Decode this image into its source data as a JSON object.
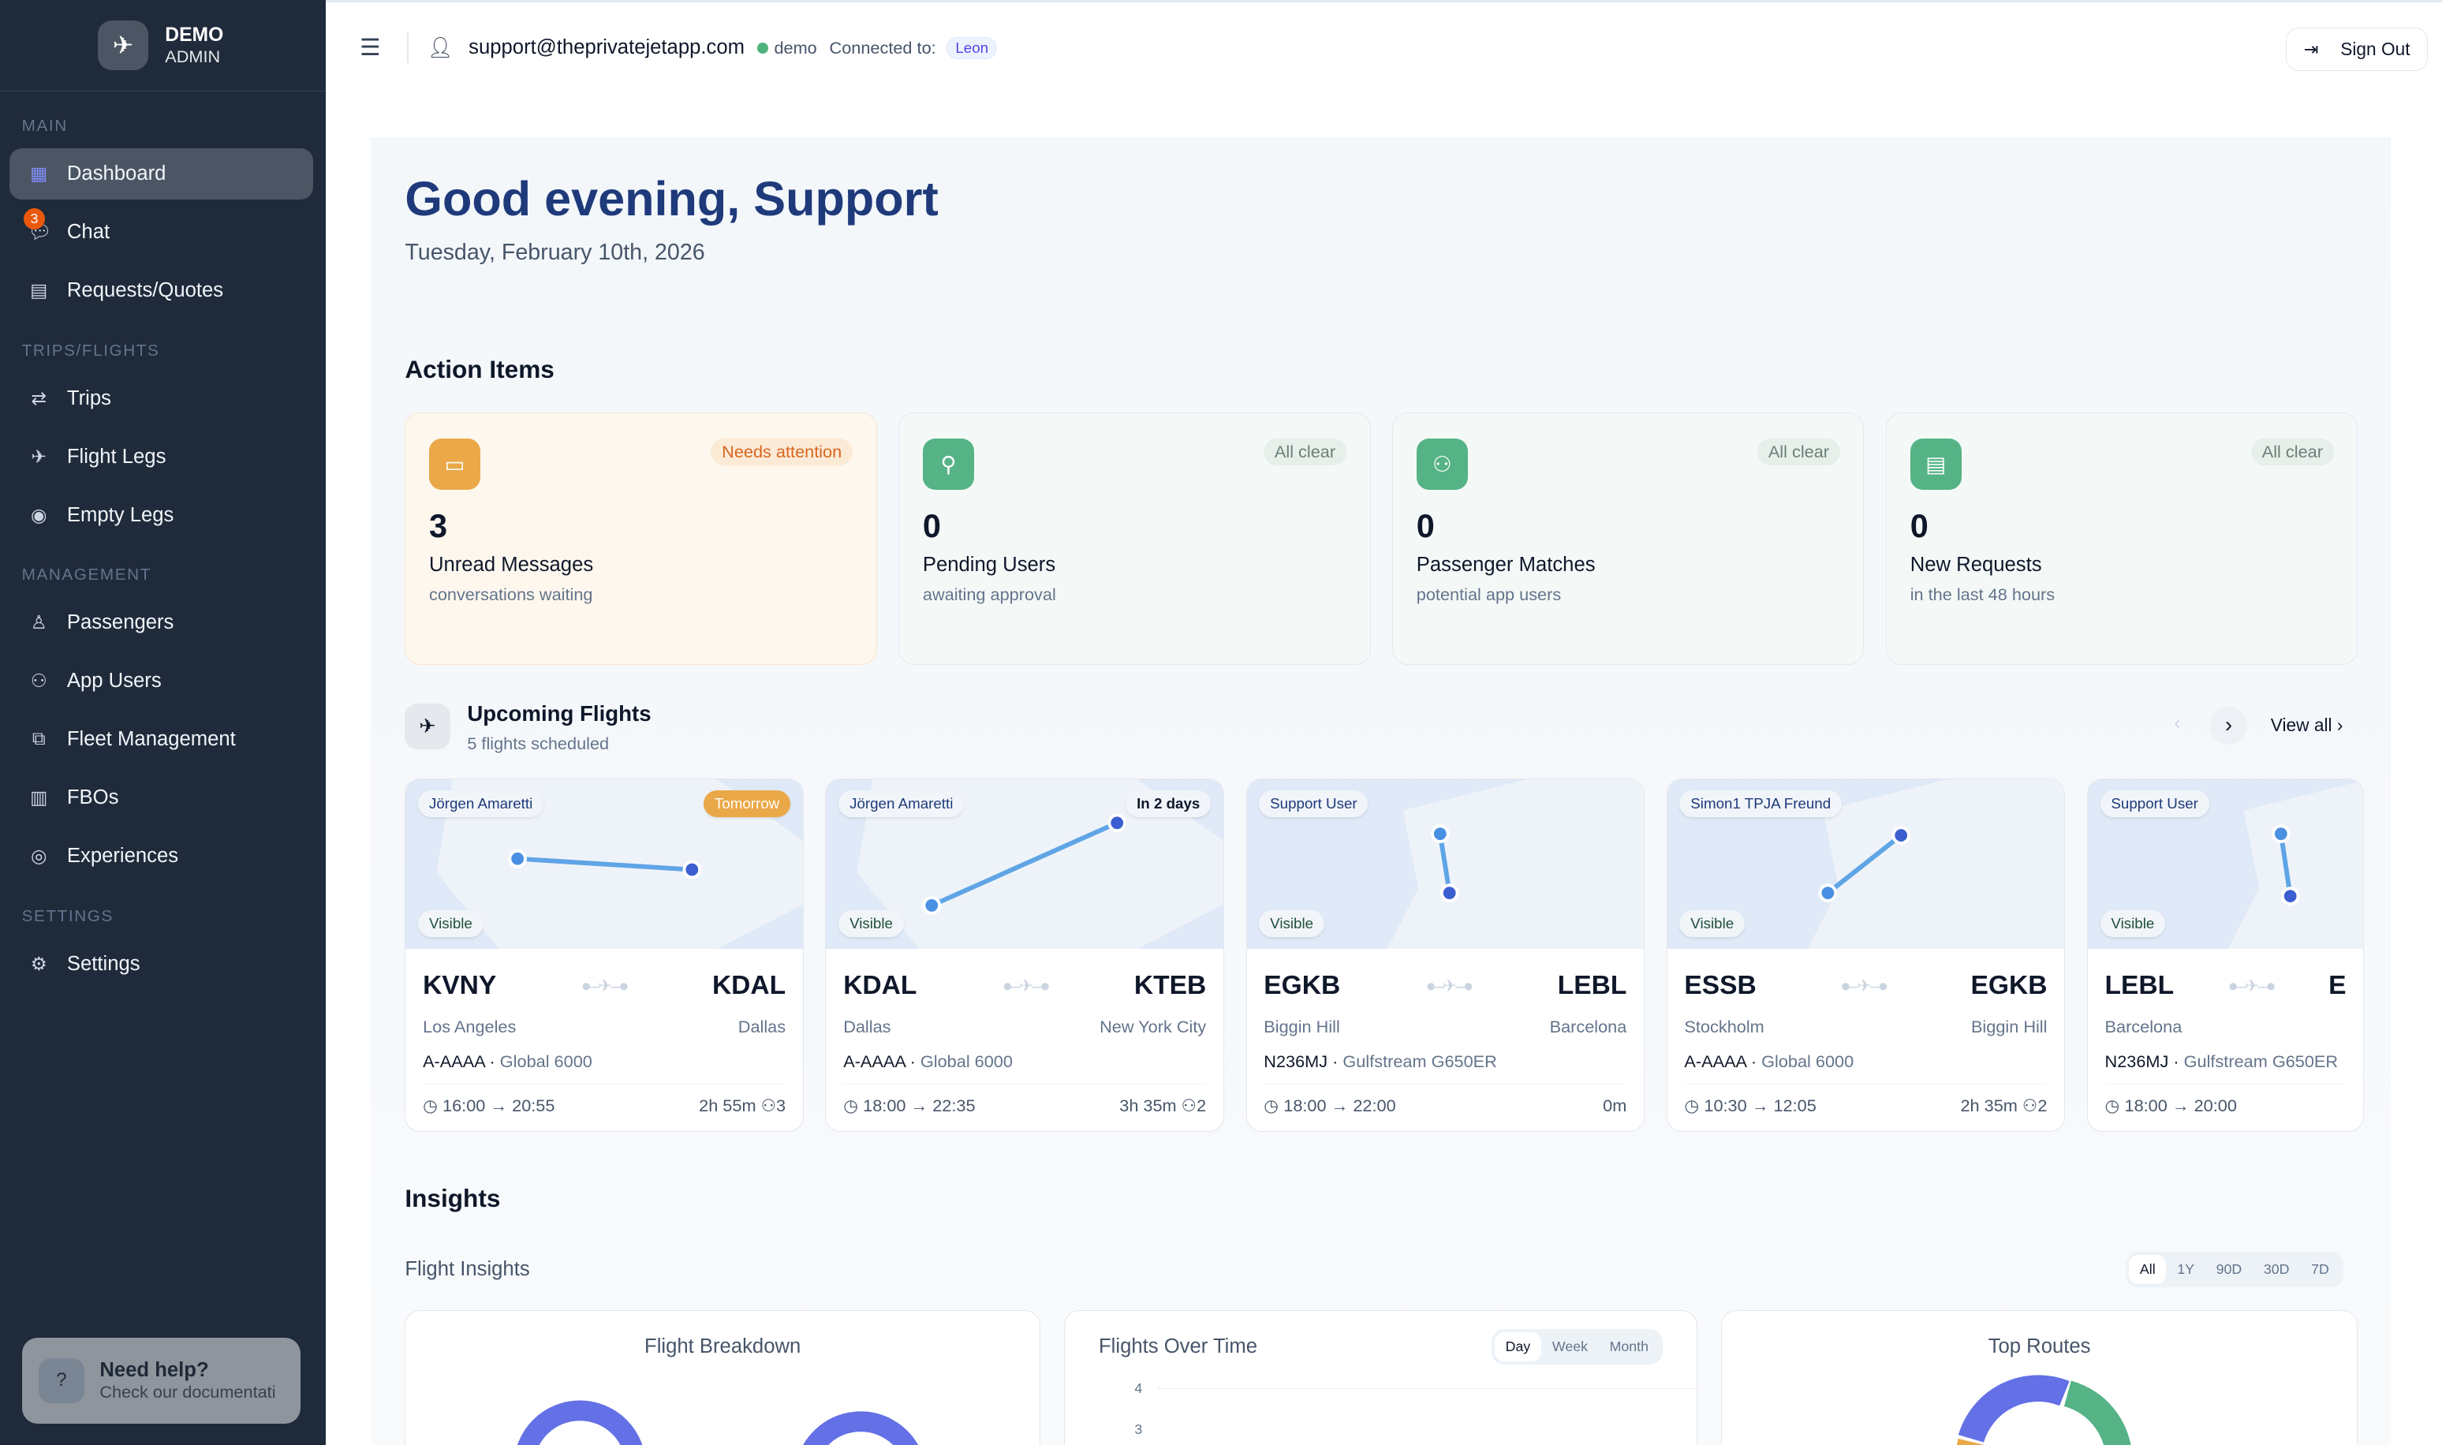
{
  "brand": {
    "title": "DEMO",
    "subtitle": "ADMIN"
  },
  "sidebar": {
    "sections": [
      {
        "label": "MAIN",
        "items": [
          {
            "label": "Dashboard",
            "icon": "grid-icon",
            "active": true
          },
          {
            "label": "Chat",
            "icon": "chat-icon",
            "badge": "3"
          },
          {
            "label": "Requests/Quotes",
            "icon": "document-icon"
          }
        ]
      },
      {
        "label": "TRIPS/FLIGHTS",
        "items": [
          {
            "label": "Trips",
            "icon": "route-icon"
          },
          {
            "label": "Flight Legs",
            "icon": "plane-icon"
          },
          {
            "label": "Empty Legs",
            "icon": "pin-icon"
          }
        ]
      },
      {
        "label": "MANAGEMENT",
        "items": [
          {
            "label": "Passengers",
            "icon": "user-icon"
          },
          {
            "label": "App Users",
            "icon": "users-icon"
          },
          {
            "label": "Fleet Management",
            "icon": "fleet-icon"
          },
          {
            "label": "FBOs",
            "icon": "building-icon"
          },
          {
            "label": "Experiences",
            "icon": "compass-icon"
          }
        ]
      },
      {
        "label": "SETTINGS",
        "items": [
          {
            "label": "Settings",
            "icon": "gear-icon"
          }
        ]
      }
    ],
    "help": {
      "title": "Need help?",
      "subtitle": "Check our documentati"
    }
  },
  "topbar": {
    "email": "support@theprivatejetapp.com",
    "env": "demo",
    "connected_label": "Connected to:",
    "connected_value": "Leon",
    "signout": "Sign Out"
  },
  "greeting": "Good evening, Support",
  "date": "Tuesday, February 10th, 2026",
  "action_items": {
    "title": "Action Items",
    "cards": [
      {
        "count": "3",
        "title": "Unread Messages",
        "sub": "conversations waiting",
        "status": "Needs attention",
        "icon": "message-icon"
      },
      {
        "count": "0",
        "title": "Pending Users",
        "sub": "awaiting approval",
        "status": "All clear",
        "icon": "user-plus-icon"
      },
      {
        "count": "0",
        "title": "Passenger Matches",
        "sub": "potential app users",
        "status": "All clear",
        "icon": "users-icon"
      },
      {
        "count": "0",
        "title": "New Requests",
        "sub": "in the last 48 hours",
        "status": "All clear",
        "icon": "file-icon"
      }
    ]
  },
  "upcoming": {
    "title": "Upcoming Flights",
    "subtitle": "5 flights scheduled",
    "view_all": "View all",
    "flights": [
      {
        "owner": "Jörgen Amaretti",
        "when": "Tomorrow",
        "visibility": "Visible",
        "from": "KVNY",
        "to": "KDAL",
        "from_city": "Los Angeles",
        "to_city": "Dallas",
        "reg": "A-AAAA",
        "aircraft": "Global 6000",
        "times": "16:00 → 20:55",
        "duration": "2h 55m",
        "pax": "3"
      },
      {
        "owner": "Jörgen Amaretti",
        "when": "In 2 days",
        "visibility": "Visible",
        "from": "KDAL",
        "to": "KTEB",
        "from_city": "Dallas",
        "to_city": "New York City",
        "reg": "A-AAAA",
        "aircraft": "Global 6000",
        "times": "18:00 → 22:35",
        "duration": "3h 35m",
        "pax": "2"
      },
      {
        "owner": "Support User",
        "when": "",
        "visibility": "Visible",
        "from": "EGKB",
        "to": "LEBL",
        "from_city": "Biggin Hill",
        "to_city": "Barcelona",
        "reg": "N236MJ",
        "aircraft": "Gulfstream G650ER",
        "times": "18:00 → 22:00",
        "duration": "0m",
        "pax": ""
      },
      {
        "owner": "Simon1 TPJA Freund",
        "when": "",
        "visibility": "Visible",
        "from": "ESSB",
        "to": "EGKB",
        "from_city": "Stockholm",
        "to_city": "Biggin Hill",
        "reg": "A-AAAA",
        "aircraft": "Global 6000",
        "times": "10:30 → 12:05",
        "duration": "2h 35m",
        "pax": "2"
      },
      {
        "owner": "Support User",
        "when": "",
        "visibility": "Visible",
        "from": "LEBL",
        "to": "E",
        "from_city": "Barcelona",
        "to_city": "",
        "reg": "N236MJ",
        "aircraft": "Gulfstream G650ER",
        "times": "18:00 → 20:00",
        "duration": "",
        "pax": ""
      }
    ]
  },
  "insights": {
    "title": "Insights",
    "subtitle": "Flight Insights",
    "ranges": [
      "All",
      "1Y",
      "90D",
      "30D",
      "7D"
    ],
    "selected_range": "All",
    "panels": {
      "breakdown": "Flight Breakdown",
      "over_time": "Flights Over Time",
      "top_routes": "Top Routes"
    },
    "granularity": [
      "Day",
      "Week",
      "Month"
    ],
    "selected_granularity": "Day",
    "y_ticks": [
      "4",
      "3"
    ]
  },
  "colors": {
    "sidebar": "#1f2a3b",
    "accent": "#1e3a7b",
    "warning": "#eba848",
    "success": "#55b386",
    "chart_blue": "#6370e6",
    "chart_green": "#55b386",
    "chart_orange": "#eba848"
  }
}
